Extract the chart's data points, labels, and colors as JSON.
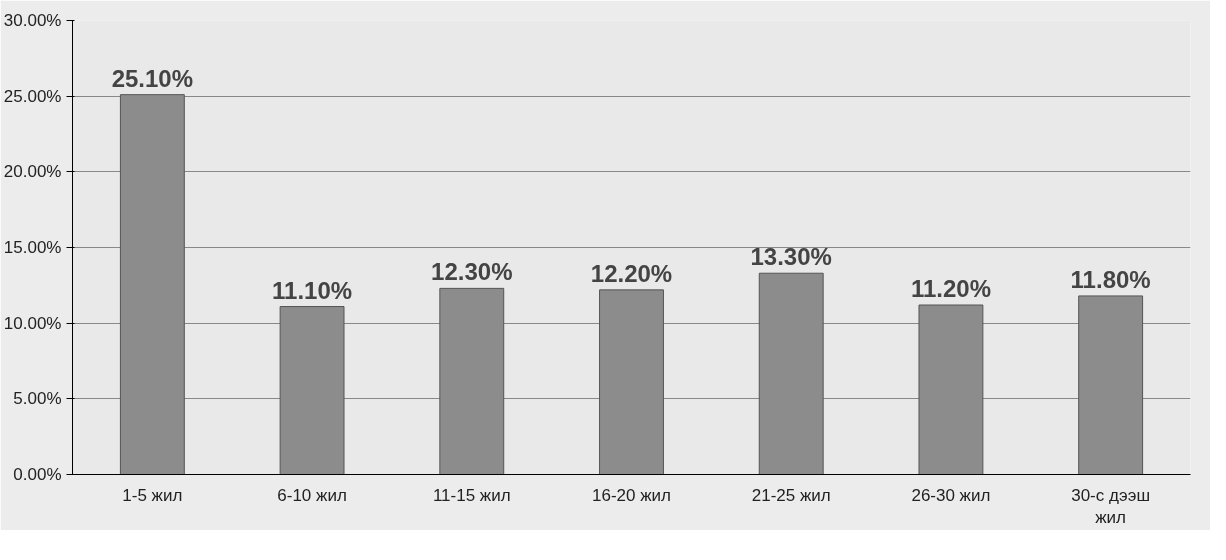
{
  "chart_data": {
    "type": "bar",
    "categories": [
      "1-5 жил",
      "6-10 жил",
      "11-15 жил",
      "16-20 жил",
      "21-25 жил",
      "26-30 жил",
      "30-с дээш жил"
    ],
    "values": [
      25.1,
      11.1,
      12.3,
      12.2,
      13.3,
      11.2,
      11.8
    ],
    "value_labels": [
      "25.10%",
      "11.10%",
      "12.30%",
      "12.20%",
      "13.30%",
      "11.20%",
      "11.80%"
    ],
    "color": "#8c8c8c",
    "ylim": [
      0,
      30
    ],
    "yticks": [
      {
        "value": 0,
        "label": "0.00%"
      },
      {
        "value": 5,
        "label": "5.00%"
      },
      {
        "value": 10,
        "label": "10.00%"
      },
      {
        "value": 15,
        "label": "15.00%"
      },
      {
        "value": 20,
        "label": "20.00%"
      },
      {
        "value": 25,
        "label": "25.00%"
      },
      {
        "value": 30,
        "label": "30.00%"
      }
    ],
    "grid": "y"
  }
}
